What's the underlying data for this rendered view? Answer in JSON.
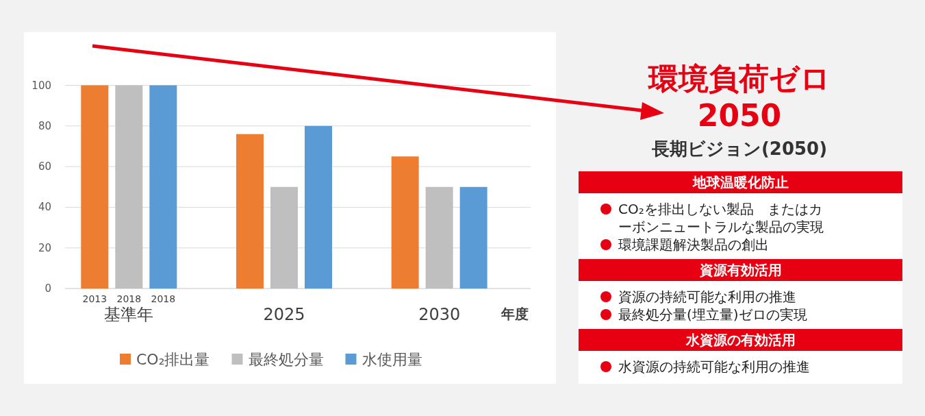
{
  "chart_data": [
    {
      "type": "bar",
      "categories": [
        "基準年",
        "2025",
        "2030"
      ],
      "xlabel": "年度",
      "ylim": [
        0,
        100
      ],
      "yticks": [
        0,
        20,
        40,
        60,
        80,
        100
      ],
      "grid": "y",
      "legend": "bottom",
      "series": [
        {
          "name": "CO₂排出量",
          "color": "#ed7d31",
          "values": [
            100,
            76,
            65
          ]
        },
        {
          "name": "最終処分量",
          "color": "#bfbfbf",
          "values": [
            100,
            50,
            50
          ]
        },
        {
          "name": "水使用量",
          "color": "#5b9bd5",
          "values": [
            100,
            80,
            50
          ]
        }
      ],
      "annotations": [
        "2013",
        "2018",
        "2018"
      ]
    },
    {
      "type": "other",
      "title": "環境負荷ゼロ\n2050",
      "subtitle": "長期ビジョン(2050)"
    },
    {
      "type": "other",
      "title": "地球温暖化防止",
      "annotations": [
        "CO₂を排出しない製品　またはカーボンニュートラルな製品の実現",
        "環境課題解決製品の創出"
      ]
    },
    {
      "type": "other",
      "title": "資源有効活用",
      "annotations": [
        "資源の持続可能な利用の推進",
        "最終処分量(埋立量)ゼロの実現"
      ]
    },
    {
      "type": "other",
      "title": "水資源の有効活用",
      "annotations": [
        "水資源の持続可能な利用の推進"
      ]
    }
  ]
}
